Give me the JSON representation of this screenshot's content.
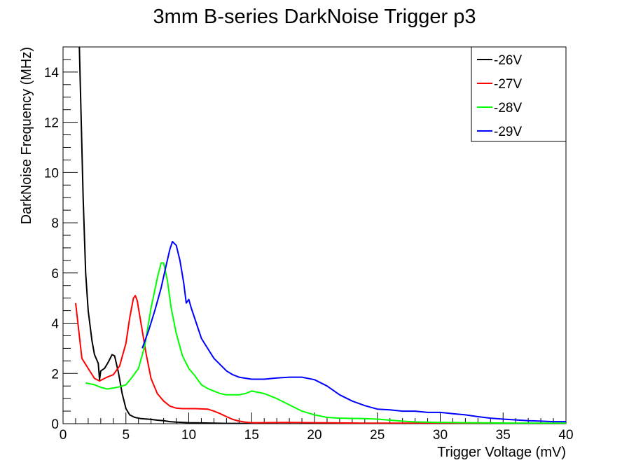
{
  "chart_data": {
    "type": "line",
    "title": "3mm B-series DarkNoise Trigger p3",
    "xlabel": "Trigger Voltage (mV)",
    "ylabel": "DarkNoise Frequency (MHz)",
    "xlim": [
      0,
      40
    ],
    "ylim": [
      0,
      15
    ],
    "x_ticks": [
      "0",
      "5",
      "10",
      "15",
      "20",
      "25",
      "30",
      "35",
      "40"
    ],
    "y_ticks": [
      "0",
      "2",
      "4",
      "6",
      "8",
      "10",
      "12",
      "14"
    ],
    "grid": false,
    "legend_position": "top-right",
    "series": [
      {
        "name": "-26V",
        "color": "#000000",
        "points": [
          [
            1.3,
            15.0
          ],
          [
            1.6,
            9.0
          ],
          [
            1.8,
            6.0
          ],
          [
            2.0,
            4.5
          ],
          [
            2.3,
            3.3
          ],
          [
            2.5,
            2.75
          ],
          [
            2.8,
            2.4
          ],
          [
            2.9,
            1.75
          ],
          [
            3.0,
            2.1
          ],
          [
            3.3,
            2.2
          ],
          [
            3.6,
            2.45
          ],
          [
            3.9,
            2.75
          ],
          [
            4.1,
            2.7
          ],
          [
            4.4,
            2.05
          ],
          [
            4.7,
            1.2
          ],
          [
            5.0,
            0.6
          ],
          [
            5.3,
            0.35
          ],
          [
            5.7,
            0.25
          ],
          [
            6.2,
            0.2
          ],
          [
            7.0,
            0.17
          ],
          [
            7.5,
            0.14
          ],
          [
            8.0,
            0.12
          ],
          [
            8.5,
            0.08
          ],
          [
            9.0,
            0.06
          ],
          [
            10.0,
            0.04
          ],
          [
            11.0,
            0.03
          ],
          [
            12.0,
            0.02
          ],
          [
            13.0,
            0.01
          ],
          [
            14.0,
            0.01
          ],
          [
            15.0,
            0.0
          ]
        ]
      },
      {
        "name": "-27V",
        "color": "#ff0000",
        "points": [
          [
            1.0,
            4.8
          ],
          [
            1.5,
            2.6
          ],
          [
            2.0,
            2.2
          ],
          [
            2.5,
            1.8
          ],
          [
            2.9,
            1.7
          ],
          [
            3.5,
            1.85
          ],
          [
            4.0,
            1.95
          ],
          [
            4.5,
            2.3
          ],
          [
            5.0,
            3.2
          ],
          [
            5.3,
            4.2
          ],
          [
            5.6,
            5.0
          ],
          [
            5.75,
            5.1
          ],
          [
            5.9,
            4.9
          ],
          [
            6.2,
            4.0
          ],
          [
            6.6,
            2.8
          ],
          [
            7.0,
            1.8
          ],
          [
            7.5,
            1.2
          ],
          [
            8.0,
            0.9
          ],
          [
            8.5,
            0.7
          ],
          [
            9.0,
            0.62
          ],
          [
            9.5,
            0.6
          ],
          [
            10.5,
            0.6
          ],
          [
            11.5,
            0.58
          ],
          [
            12.0,
            0.5
          ],
          [
            12.5,
            0.4
          ],
          [
            13.0,
            0.28
          ],
          [
            13.5,
            0.17
          ],
          [
            14.0,
            0.1
          ],
          [
            14.5,
            0.06
          ],
          [
            15.0,
            0.04
          ],
          [
            16.0,
            0.04
          ],
          [
            18.0,
            0.05
          ],
          [
            20.0,
            0.04
          ],
          [
            22.0,
            0.03
          ],
          [
            24.0,
            0.02
          ],
          [
            26.0,
            0.02
          ],
          [
            28.0,
            0.02
          ],
          [
            30.0,
            0.01
          ],
          [
            34.0,
            0.01
          ],
          [
            36.0,
            0.0
          ]
        ]
      },
      {
        "name": "-28V",
        "color": "#00ff00",
        "points": [
          [
            1.8,
            1.62
          ],
          [
            2.5,
            1.55
          ],
          [
            3.0,
            1.45
          ],
          [
            3.5,
            1.38
          ],
          [
            4.0,
            1.42
          ],
          [
            4.5,
            1.47
          ],
          [
            5.0,
            1.55
          ],
          [
            5.5,
            1.85
          ],
          [
            6.0,
            2.2
          ],
          [
            6.5,
            3.1
          ],
          [
            7.0,
            4.6
          ],
          [
            7.5,
            5.8
          ],
          [
            7.8,
            6.4
          ],
          [
            8.0,
            6.4
          ],
          [
            8.3,
            5.7
          ],
          [
            8.6,
            4.6
          ],
          [
            9.0,
            3.6
          ],
          [
            9.5,
            2.7
          ],
          [
            10.0,
            2.2
          ],
          [
            10.5,
            1.9
          ],
          [
            11.0,
            1.55
          ],
          [
            11.5,
            1.4
          ],
          [
            12.0,
            1.3
          ],
          [
            12.5,
            1.2
          ],
          [
            13.0,
            1.15
          ],
          [
            14.0,
            1.15
          ],
          [
            14.5,
            1.2
          ],
          [
            15.0,
            1.3
          ],
          [
            16.0,
            1.2
          ],
          [
            17.0,
            1.0
          ],
          [
            18.0,
            0.75
          ],
          [
            19.0,
            0.5
          ],
          [
            20.0,
            0.35
          ],
          [
            21.0,
            0.25
          ],
          [
            22.0,
            0.22
          ],
          [
            24.0,
            0.2
          ],
          [
            25.0,
            0.18
          ],
          [
            26.0,
            0.14
          ],
          [
            27.0,
            0.1
          ],
          [
            28.0,
            0.07
          ],
          [
            30.0,
            0.05
          ],
          [
            32.0,
            0.04
          ],
          [
            34.0,
            0.03
          ],
          [
            36.0,
            0.02
          ],
          [
            38.0,
            0.02
          ],
          [
            40.0,
            0.02
          ]
        ]
      },
      {
        "name": "-29V",
        "color": "#0000ff",
        "points": [
          [
            6.3,
            3.0
          ],
          [
            6.8,
            3.7
          ],
          [
            7.3,
            4.5
          ],
          [
            7.8,
            5.4
          ],
          [
            8.2,
            6.3
          ],
          [
            8.5,
            6.95
          ],
          [
            8.7,
            7.25
          ],
          [
            9.0,
            7.1
          ],
          [
            9.3,
            6.5
          ],
          [
            9.6,
            5.6
          ],
          [
            9.8,
            4.8
          ],
          [
            10.0,
            4.95
          ],
          [
            10.2,
            4.6
          ],
          [
            10.6,
            4.0
          ],
          [
            11.0,
            3.4
          ],
          [
            11.5,
            3.0
          ],
          [
            12.0,
            2.6
          ],
          [
            12.5,
            2.35
          ],
          [
            13.0,
            2.1
          ],
          [
            13.5,
            1.95
          ],
          [
            14.0,
            1.85
          ],
          [
            15.0,
            1.77
          ],
          [
            16.0,
            1.77
          ],
          [
            17.0,
            1.82
          ],
          [
            18.0,
            1.85
          ],
          [
            19.0,
            1.85
          ],
          [
            20.0,
            1.75
          ],
          [
            21.0,
            1.5
          ],
          [
            22.0,
            1.15
          ],
          [
            23.0,
            0.9
          ],
          [
            24.0,
            0.72
          ],
          [
            25.0,
            0.58
          ],
          [
            26.0,
            0.55
          ],
          [
            27.0,
            0.5
          ],
          [
            28.0,
            0.5
          ],
          [
            29.0,
            0.45
          ],
          [
            30.0,
            0.45
          ],
          [
            31.0,
            0.4
          ],
          [
            32.0,
            0.35
          ],
          [
            33.0,
            0.28
          ],
          [
            34.0,
            0.22
          ],
          [
            35.0,
            0.18
          ],
          [
            36.0,
            0.15
          ],
          [
            37.0,
            0.12
          ],
          [
            38.0,
            0.1
          ],
          [
            39.0,
            0.08
          ],
          [
            40.0,
            0.08
          ]
        ]
      }
    ]
  }
}
